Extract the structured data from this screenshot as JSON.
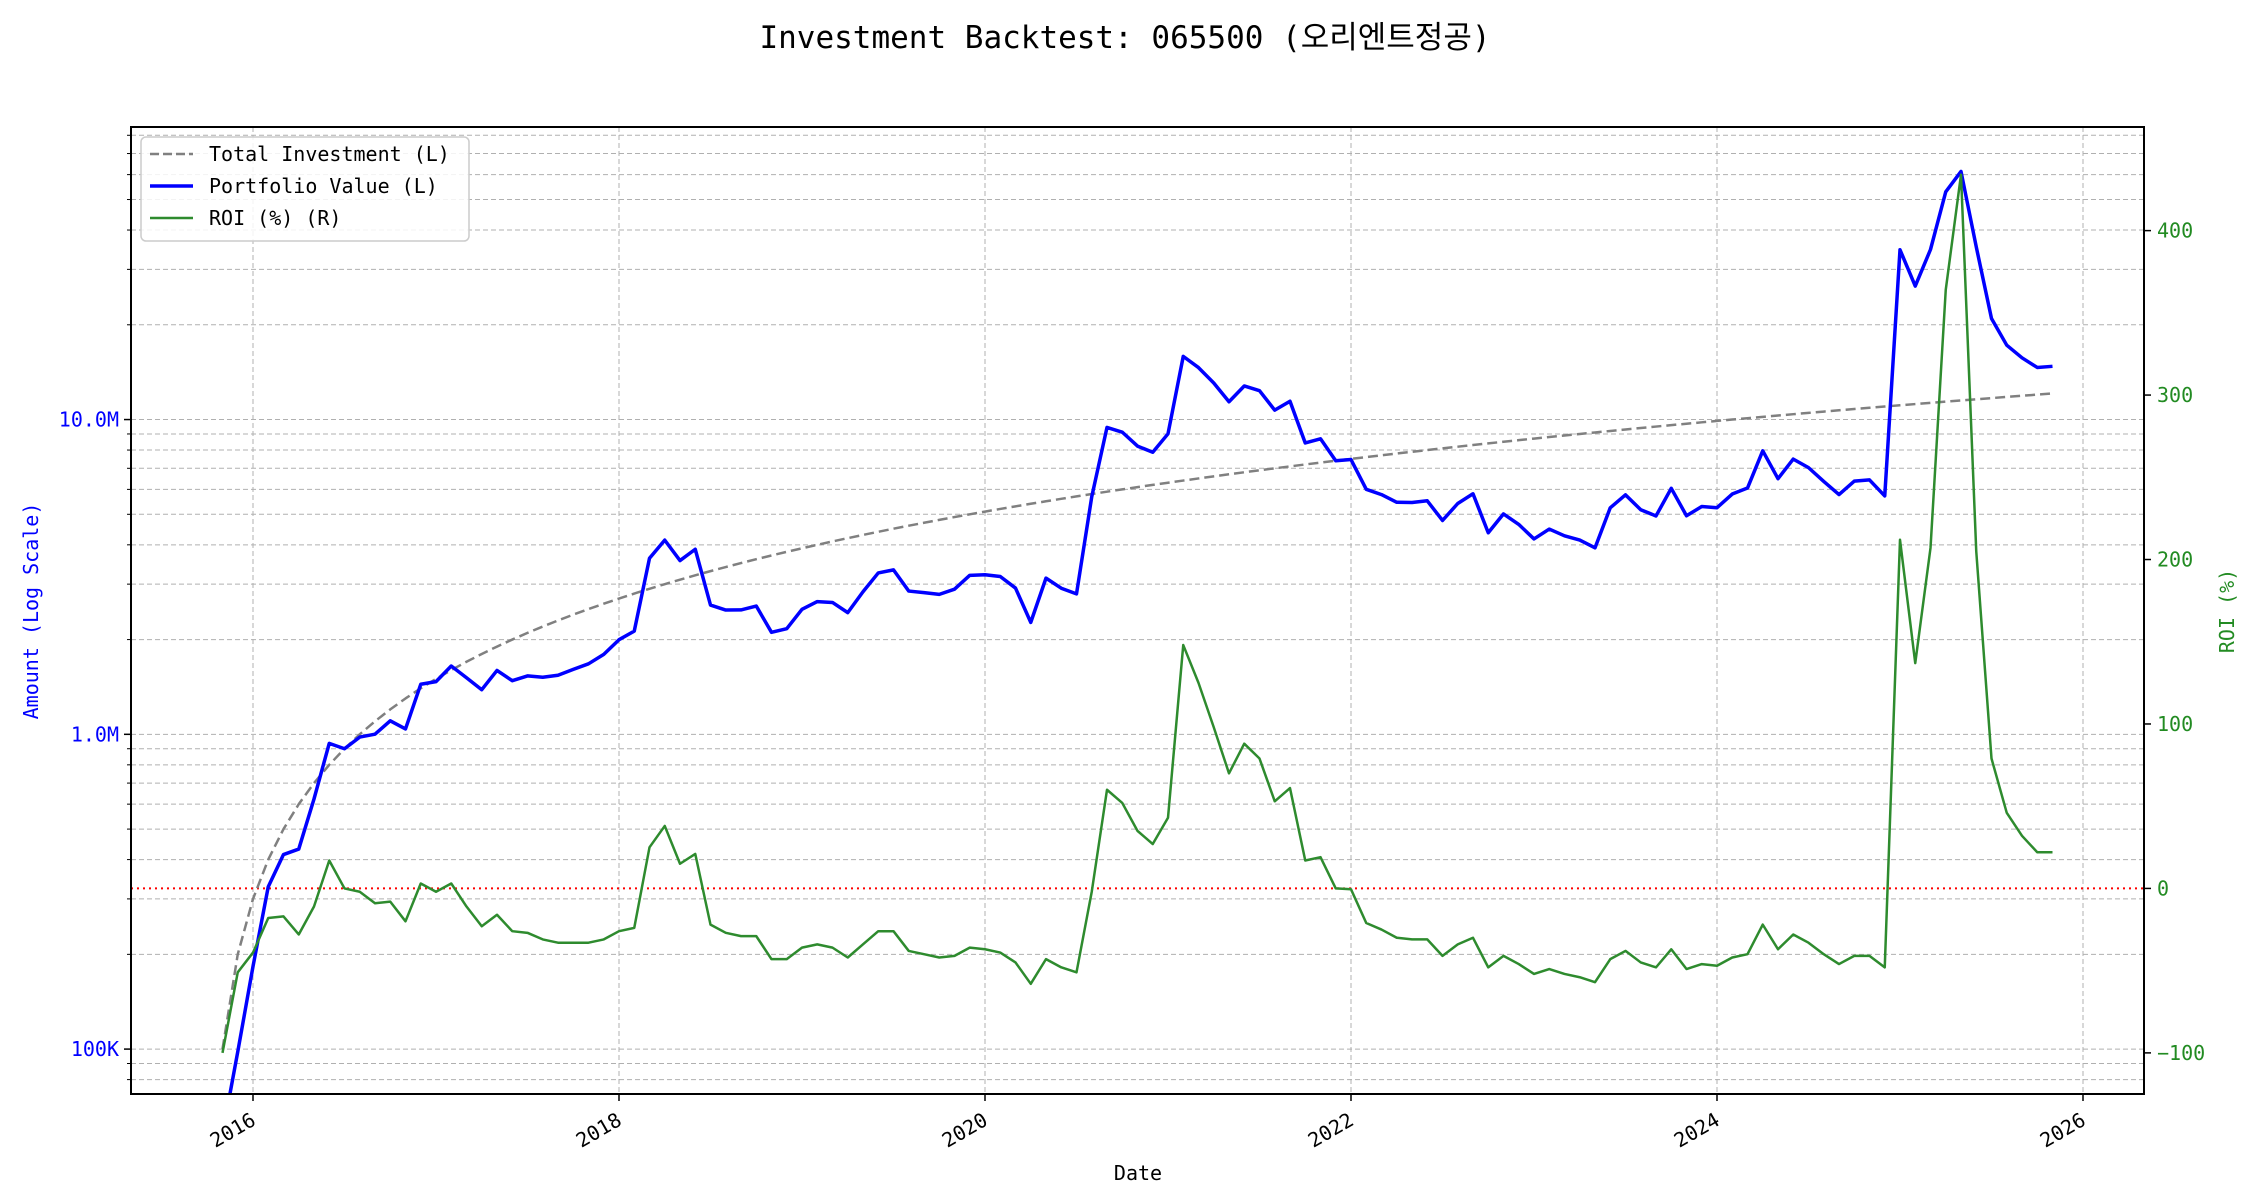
{
  "chart_data": {
    "type": "line",
    "title": "Investment Backtest: 065500 (오리엔트정공)",
    "xlabel": "Date",
    "ylabel_left": "Amount (Log Scale)",
    "ylabel_right": "ROI (%)",
    "y_left_scale": "log",
    "y_left_range": [
      72000,
      85000000
    ],
    "y_right_range": [
      -125,
      463
    ],
    "x_range": [
      "2015-05",
      "2026-05"
    ],
    "grid": true,
    "legend_position": "top-left",
    "x_ticks": [
      "2016",
      "2018",
      "2020",
      "2022",
      "2024",
      "2026"
    ],
    "y_left_ticks": [
      {
        "value": 100000,
        "label": "100K"
      },
      {
        "value": 1000000,
        "label": "1.0M"
      },
      {
        "value": 10000000,
        "label": "10.0M"
      }
    ],
    "y_right_ticks": [
      {
        "value": 400,
        "label": "400"
      },
      {
        "value": 300,
        "label": "300"
      },
      {
        "value": 200,
        "label": "200"
      },
      {
        "value": 100,
        "label": "100"
      },
      {
        "value": 0,
        "label": "0"
      },
      {
        "value": -100,
        "label": "−100"
      }
    ],
    "reference_line": {
      "axis": "right",
      "value": 0,
      "color": "#ff0000",
      "style": "dotted"
    },
    "colors": {
      "investment": "#808080",
      "portfolio": "#0000ff",
      "roi": "#2e8b2e",
      "left_axis": "#0000ff",
      "right_axis": "#228b22"
    },
    "dates": [
      "2015-11",
      "2015-12",
      "2016-01",
      "2016-02",
      "2016-03",
      "2016-04",
      "2016-05",
      "2016-06",
      "2016-07",
      "2016-08",
      "2016-09",
      "2016-10",
      "2016-11",
      "2016-12",
      "2017-01",
      "2017-02",
      "2017-03",
      "2017-04",
      "2017-05",
      "2017-06",
      "2017-07",
      "2017-08",
      "2017-09",
      "2017-10",
      "2017-11",
      "2017-12",
      "2018-01",
      "2018-02",
      "2018-03",
      "2018-04",
      "2018-05",
      "2018-06",
      "2018-07",
      "2018-08",
      "2018-09",
      "2018-10",
      "2018-11",
      "2018-12",
      "2019-01",
      "2019-02",
      "2019-03",
      "2019-04",
      "2019-05",
      "2019-06",
      "2019-07",
      "2019-08",
      "2019-09",
      "2019-10",
      "2019-11",
      "2019-12",
      "2020-01",
      "2020-02",
      "2020-03",
      "2020-04",
      "2020-05",
      "2020-06",
      "2020-07",
      "2020-08",
      "2020-09",
      "2020-10",
      "2020-11",
      "2020-12",
      "2021-01",
      "2021-02",
      "2021-03",
      "2021-04",
      "2021-05",
      "2021-06",
      "2021-07",
      "2021-08",
      "2021-09",
      "2021-10",
      "2021-11",
      "2021-12",
      "2022-01",
      "2022-02",
      "2022-03",
      "2022-04",
      "2022-05",
      "2022-06",
      "2022-07",
      "2022-08",
      "2022-09",
      "2022-10",
      "2022-11",
      "2022-12",
      "2023-01",
      "2023-02",
      "2023-03",
      "2023-04",
      "2023-05",
      "2023-06",
      "2023-07",
      "2023-08",
      "2023-09",
      "2023-10",
      "2023-11",
      "2023-12",
      "2024-01",
      "2024-02",
      "2024-03",
      "2024-04",
      "2024-05",
      "2024-06",
      "2024-07",
      "2024-08",
      "2024-09",
      "2024-10",
      "2024-11",
      "2024-12",
      "2025-01",
      "2025-02",
      "2025-03",
      "2025-04",
      "2025-05",
      "2025-06",
      "2025-07",
      "2025-08",
      "2025-09",
      "2025-10",
      "2025-11"
    ],
    "series": [
      {
        "name": "Total Investment (L)",
        "axis": "left",
        "style": "dashed",
        "values": [
          100000,
          200000,
          300000,
          400000,
          500000,
          600000,
          700000,
          800000,
          900000,
          1000000,
          1100000,
          1200000,
          1300000,
          1400000,
          1500000,
          1600000,
          1700000,
          1800000,
          1900000,
          2000000,
          2100000,
          2200000,
          2300000,
          2400000,
          2500000,
          2600000,
          2700000,
          2800000,
          2900000,
          3000000,
          3100000,
          3200000,
          3300000,
          3400000,
          3500000,
          3600000,
          3700000,
          3800000,
          3900000,
          4000000,
          4100000,
          4200000,
          4300000,
          4400000,
          4500000,
          4600000,
          4700000,
          4800000,
          4900000,
          5000000,
          5100000,
          5200000,
          5300000,
          5400000,
          5500000,
          5600000,
          5700000,
          5800000,
          5900000,
          6000000,
          6100000,
          6200000,
          6300000,
          6400000,
          6500000,
          6600000,
          6700000,
          6800000,
          6900000,
          7000000,
          7100000,
          7200000,
          7300000,
          7400000,
          7500000,
          7600000,
          7700000,
          7800000,
          7900000,
          8000000,
          8100000,
          8200000,
          8300000,
          8400000,
          8500000,
          8600000,
          8700000,
          8800000,
          8900000,
          9000000,
          9100000,
          9200000,
          9300000,
          9400000,
          9500000,
          9600000,
          9700000,
          9800000,
          9900000,
          10000000,
          10100000,
          10200000,
          10300000,
          10400000,
          10500000,
          10600000,
          10700000,
          10800000,
          10900000,
          11000000,
          11100000,
          11200000,
          11300000,
          11400000,
          11500000,
          11600000,
          11700000,
          11800000,
          11900000,
          12000000,
          12100000
        ]
      },
      {
        "name": "Portfolio Value (L)",
        "axis": "left",
        "style": "solid",
        "values": [
          0,
          98000,
          183000,
          328000,
          415000,
          432000,
          623000,
          936000,
          900000,
          980000,
          1001000,
          1104000,
          1040000,
          1442000,
          1470000,
          1648000,
          1513000,
          1386000,
          1596000,
          1480000,
          1533000,
          1518000,
          1541000,
          1608000,
          1675000,
          1794000,
          1998000,
          2128000,
          3625000,
          4140000,
          3565000,
          3872000,
          2574000,
          2482000,
          2485000,
          2556000,
          2109000,
          2166000,
          2496000,
          2640000,
          2624000,
          2436000,
          2838000,
          3256000,
          3330000,
          2852000,
          2820000,
          2784000,
          2891000,
          3200000,
          3213000,
          3172000,
          2915000,
          2268000,
          3135000,
          2912000,
          2793000,
          5684000,
          9440000,
          9120000,
          8235000,
          7874000,
          9009000,
          15872000,
          14625000,
          13068000,
          11390000,
          12784000,
          12351000,
          10710000,
          11431000,
          8424000,
          8687000,
          7400000,
          7463000,
          6004000,
          5775000,
          5460000,
          5451000,
          5520000,
          4779000,
          5412000,
          5810000,
          4368000,
          5015000,
          4644000,
          4176000,
          4488000,
          4272000,
          4140000,
          3913000,
          5244000,
          5766000,
          5170000,
          4940000,
          6048000,
          4947000,
          5292000,
          5247000,
          5800000,
          6060000,
          7956000,
          6489000,
          7488000,
          7035000,
          6360000,
          5778000,
          6372000,
          6431000,
          5720000,
          34632000,
          26544000,
          34691000,
          52896000,
          61410000,
          35380000,
          20943000,
          17228000,
          15708000,
          14640000,
          14762000
        ]
      },
      {
        "name": "ROI (%) (R)",
        "axis": "right",
        "style": "solid",
        "values": [
          -100,
          -51,
          -39,
          -18,
          -17,
          -28,
          -11,
          17,
          0,
          -2,
          -9,
          -8,
          -20,
          3,
          -2,
          3,
          -11,
          -23,
          -16,
          -26,
          -27,
          -31,
          -33,
          -33,
          -33,
          -31,
          -26,
          -24,
          25,
          38,
          15,
          21,
          -22,
          -27,
          -29,
          -29,
          -43,
          -43,
          -36,
          -34,
          -36,
          -42,
          -34,
          -26,
          -26,
          -38,
          -40,
          -42,
          -41,
          -36,
          -37,
          -39,
          -45,
          -58,
          -43,
          -48,
          -51,
          -2,
          60,
          52,
          35,
          27,
          43,
          148,
          125,
          98,
          70,
          88,
          79,
          53,
          61,
          17,
          19,
          0,
          -0.5,
          -21,
          -25,
          -30,
          -31,
          -31,
          -41,
          -34,
          -30,
          -48,
          -41,
          -46,
          -52,
          -49,
          -52,
          -54,
          -57,
          -43,
          -38,
          -45,
          -48,
          -37,
          -49,
          -46,
          -47,
          -42,
          -40,
          -22,
          -37,
          -28,
          -33,
          -40,
          -46,
          -41,
          -41,
          -48,
          212,
          137,
          207,
          364,
          434,
          205,
          79,
          46,
          32,
          22,
          22
        ]
      }
    ]
  }
}
